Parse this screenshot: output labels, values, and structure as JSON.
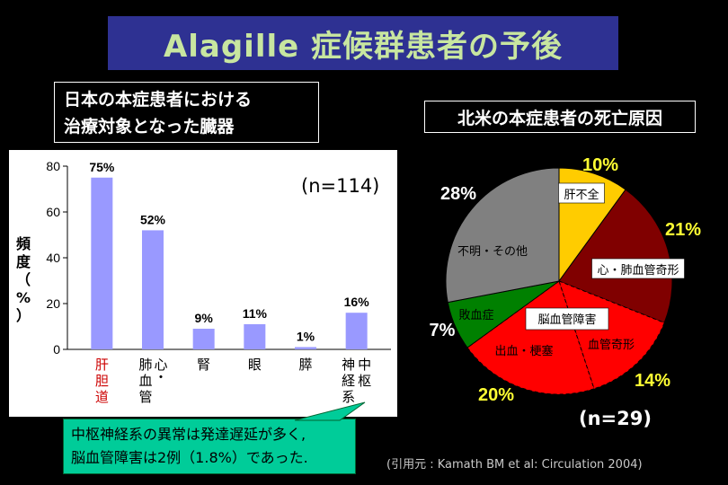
{
  "slide_title": "Alagille 症候群患者の予後",
  "left_heading": [
    "日本の本症患者における",
    "治療対象となった臓器"
  ],
  "right_heading": "北米の本症患者の死亡原因",
  "callout": [
    "中枢神経系の異常は発達遅延が多く,",
    "脳血管障害は2例（1.8%）であった."
  ],
  "citation": "(引用元 : Kamath BM et al: Circulation 2004)",
  "colors": {
    "title_bg": "#2e3192",
    "title_text": "#c8e6a0",
    "bar": "#9999ff",
    "callout_bg": "#00cc99",
    "pie_label_yellow": "#ffff33"
  },
  "chart_data": [
    {
      "type": "bar",
      "categories": [
        "肝胆道",
        "心・肺血管",
        "腎",
        "眼",
        "膵",
        "中枢神経系"
      ],
      "category_lines": [
        [
          "肝",
          "胆",
          "道"
        ],
        [
          "心・",
          "肺",
          "血",
          "管"
        ],
        [
          "腎"
        ],
        [
          "眼"
        ],
        [
          "膵"
        ],
        [
          "中",
          "枢",
          "神",
          "経",
          "系"
        ]
      ],
      "values": [
        75,
        52,
        9,
        11,
        1,
        16
      ],
      "data_labels": [
        "75%",
        "52%",
        "9%",
        "11%",
        "1%",
        "16%"
      ],
      "ylabel": [
        "頻",
        "度",
        "（",
        "%",
        "）"
      ],
      "ylim": [
        0,
        80
      ],
      "yticks": [
        0,
        20,
        40,
        60,
        80
      ],
      "annotation": "(n=114)",
      "highlight_category": "肝胆道",
      "highlight_color": "#cc0000",
      "grid": false
    },
    {
      "type": "pie",
      "labels": [
        "肝不全",
        "心・肺血管奇形",
        "血管奇形",
        "出血・梗塞",
        "敗血症",
        "不明・その他"
      ],
      "values": [
        10,
        21,
        14,
        20,
        7,
        28
      ],
      "percent_labels": [
        "10%",
        "21%",
        "14%",
        "20%",
        "7%",
        "28%"
      ],
      "colors": [
        "#ffcc00",
        "#800000",
        "#ff0000",
        "#ff0000",
        "#008000",
        "#808080"
      ],
      "group_label": "脳血管障害",
      "annotation": "(n=29)"
    }
  ]
}
